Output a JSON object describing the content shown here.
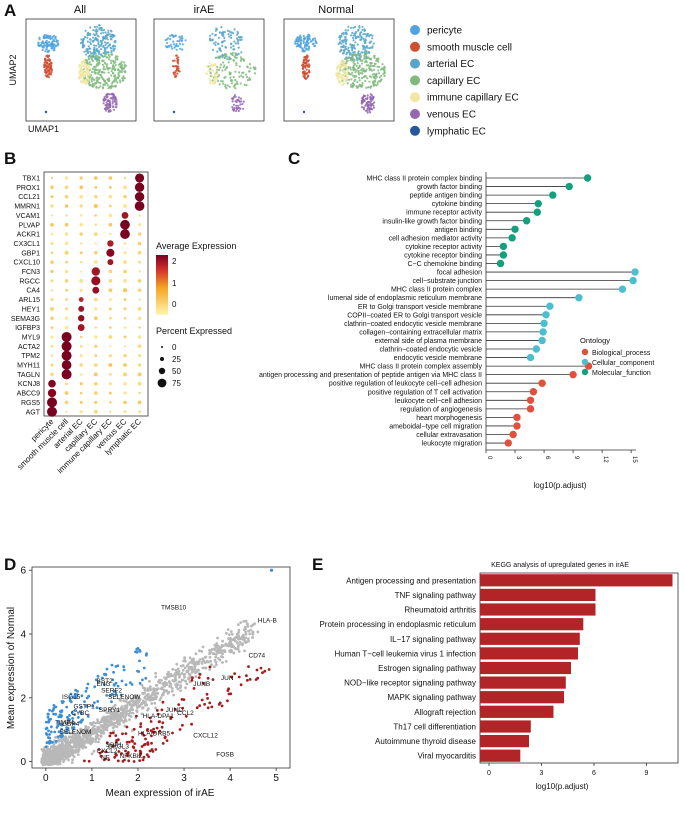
{
  "panels": {
    "A": "A",
    "B": "B",
    "C": "C",
    "D": "D",
    "E": "E"
  },
  "colors": {
    "pericyte": "#4fa3df",
    "smooth_muscle_cell": "#cf4f31",
    "arterial_EC": "#57a6c9",
    "capillary_EC": "#7fba7c",
    "immune_capillary_EC": "#f1e6a2",
    "venous_EC": "#9567b3",
    "lymphatic_EC": "#27589e",
    "dot_low": "#fff2a6",
    "dot_mid": "#f5a623",
    "dot_high": "#8b0020",
    "bio": "#e1503b",
    "cell": "#4bbfcf",
    "mol": "#13a07f",
    "up": "#a41c1c",
    "down": "#3b8fd9",
    "ns": "#b8b8b8",
    "bar": "#b32428"
  },
  "chart_data": [
    {
      "panel": "A",
      "type": "scatter",
      "umap_titles": [
        "All",
        "irAE",
        "Normal"
      ],
      "xlabel": "UMAP1",
      "ylabel": "UMAP2",
      "legend": [
        "pericyte",
        "smooth muscle cell",
        "arterial EC",
        "capillary EC",
        "immune capillary EC",
        "venous EC",
        "lymphatic EC"
      ]
    },
    {
      "panel": "B",
      "type": "scatter",
      "subtype": "dotplot",
      "genes": [
        "TBX1",
        "PROX1",
        "CCL21",
        "MMRN1",
        "VCAM1",
        "PLVAP",
        "ACKR1",
        "CX3CL1",
        "GBP1",
        "CXCL10",
        "FCN3",
        "RGCC",
        "CA4",
        "ARL15",
        "HEY1",
        "SEMA3G",
        "IGFBP3",
        "MYL9",
        "ACTA2",
        "TPM2",
        "MYH11",
        "TAGLN",
        "KCNJ8",
        "ABCC9",
        "RGS5",
        "AGT"
      ],
      "cell_types": [
        "pericyte",
        "smooth muscle cell",
        "arterial EC",
        "capillary EC",
        "immune capillary EC",
        "venous EC",
        "lymphatic EC"
      ],
      "high_expression": [
        {
          "gene": "TBX1",
          "cell": "lymphatic EC",
          "pct": 70,
          "avg": 2.2
        },
        {
          "gene": "PROX1",
          "cell": "lymphatic EC",
          "pct": 75,
          "avg": 2.2
        },
        {
          "gene": "CCL21",
          "cell": "lymphatic EC",
          "pct": 75,
          "avg": 2.2
        },
        {
          "gene": "MMRN1",
          "cell": "lymphatic EC",
          "pct": 80,
          "avg": 2.2
        },
        {
          "gene": "VCAM1",
          "cell": "venous EC",
          "pct": 40,
          "avg": 1.9
        },
        {
          "gene": "PLVAP",
          "cell": "venous EC",
          "pct": 80,
          "avg": 2.2
        },
        {
          "gene": "ACKR1",
          "cell": "venous EC",
          "pct": 80,
          "avg": 2.2
        },
        {
          "gene": "CX3CL1",
          "cell": "immune capillary EC",
          "pct": 35,
          "avg": 1.8
        },
        {
          "gene": "GBP1",
          "cell": "immune capillary EC",
          "pct": 55,
          "avg": 2.1
        },
        {
          "gene": "CXCL10",
          "cell": "immune capillary EC",
          "pct": 30,
          "avg": 1.9
        },
        {
          "gene": "FCN3",
          "cell": "capillary EC",
          "pct": 60,
          "avg": 1.9
        },
        {
          "gene": "RGCC",
          "cell": "capillary EC",
          "pct": 70,
          "avg": 2.0
        },
        {
          "gene": "CA4",
          "cell": "capillary EC",
          "pct": 40,
          "avg": 2.0
        },
        {
          "gene": "ARL15",
          "cell": "arterial EC",
          "pct": 20,
          "avg": 1.7
        },
        {
          "gene": "HEY1",
          "cell": "arterial EC",
          "pct": 30,
          "avg": 1.9
        },
        {
          "gene": "SEMA3G",
          "cell": "arterial EC",
          "pct": 35,
          "avg": 2.0
        },
        {
          "gene": "IGFBP3",
          "cell": "arterial EC",
          "pct": 40,
          "avg": 1.9
        },
        {
          "gene": "MYL9",
          "cell": "smooth muscle cell",
          "pct": 85,
          "avg": 2.2
        },
        {
          "gene": "ACTA2",
          "cell": "smooth muscle cell",
          "pct": 85,
          "avg": 2.2
        },
        {
          "gene": "TPM2",
          "cell": "smooth muscle cell",
          "pct": 85,
          "avg": 2.2
        },
        {
          "gene": "MYH11",
          "cell": "smooth muscle cell",
          "pct": 80,
          "avg": 2.2
        },
        {
          "gene": "TAGLN",
          "cell": "smooth muscle cell",
          "pct": 85,
          "avg": 2.2
        },
        {
          "gene": "KCNJ8",
          "cell": "pericyte",
          "pct": 50,
          "avg": 2.1
        },
        {
          "gene": "ABCC9",
          "cell": "pericyte",
          "pct": 60,
          "avg": 2.1
        },
        {
          "gene": "RGS5",
          "cell": "pericyte",
          "pct": 85,
          "avg": 2.2
        },
        {
          "gene": "AGT",
          "cell": "pericyte",
          "pct": 85,
          "avg": 2.2
        }
      ],
      "color_legend": {
        "title": "Average Expression",
        "ticks": [
          "2",
          "1",
          "0"
        ],
        "range": [
          -0.5,
          2.2
        ]
      },
      "size_legend": {
        "title": "Percent Expressed",
        "values": [
          "0",
          "25",
          "50",
          "75"
        ]
      }
    },
    {
      "panel": "C",
      "type": "scatter",
      "subtype": "lollipop",
      "xlabel": "log10(p.adjust)",
      "xlim": [
        0,
        15.5
      ],
      "xticks": [
        "0",
        "3",
        "6",
        "9",
        "12",
        "15"
      ],
      "legend_title": "Ontology",
      "legend": [
        "Biological_process",
        "Cellular_component",
        "Molecular_function"
      ],
      "terms": [
        {
          "label": "MHC class II protein complex binding",
          "value": 10.5,
          "ont": "mol"
        },
        {
          "label": "growth factor binding",
          "value": 8.6,
          "ont": "mol"
        },
        {
          "label": "peptide antigen binding",
          "value": 6.9,
          "ont": "mol"
        },
        {
          "label": "cytokine binding",
          "value": 5.4,
          "ont": "mol"
        },
        {
          "label": "immune receptor activity",
          "value": 5.3,
          "ont": "mol"
        },
        {
          "label": "insulin-like growth factor binding",
          "value": 4.2,
          "ont": "mol"
        },
        {
          "label": "antigen binding",
          "value": 3.0,
          "ont": "mol"
        },
        {
          "label": "cell adhesion mediator activity",
          "value": 2.7,
          "ont": "mol"
        },
        {
          "label": "cytokine receptor activity",
          "value": 1.8,
          "ont": "mol"
        },
        {
          "label": "cytokine receptor binding",
          "value": 1.8,
          "ont": "mol"
        },
        {
          "label": "C−C chemokine binding",
          "value": 1.5,
          "ont": "mol"
        },
        {
          "label": "focal adhesion",
          "value": 15.4,
          "ont": "cell"
        },
        {
          "label": "cell−substrate junction",
          "value": 15.2,
          "ont": "cell"
        },
        {
          "label": "MHC class II protein complex",
          "value": 14.1,
          "ont": "cell"
        },
        {
          "label": "lumenal side of endoplasmic reticulum membrane",
          "value": 9.6,
          "ont": "cell"
        },
        {
          "label": "ER to Golgi transport vesicle membrane",
          "value": 6.6,
          "ont": "cell"
        },
        {
          "label": "COPII−coated ER to Golgi transport vesicle",
          "value": 6.2,
          "ont": "cell"
        },
        {
          "label": "clathrin−coated endocytic vesicle membrane",
          "value": 6.0,
          "ont": "cell"
        },
        {
          "label": "collagen−containing extracellular matrix",
          "value": 5.9,
          "ont": "cell"
        },
        {
          "label": "external side of plasma membrane",
          "value": 5.8,
          "ont": "cell"
        },
        {
          "label": "clathrin−coated endocytic vesicle",
          "value": 5.2,
          "ont": "cell"
        },
        {
          "label": "endocytic vesicle membrane",
          "value": 4.6,
          "ont": "cell"
        },
        {
          "label": "MHC class II protein complex assembly",
          "value": 10.6,
          "ont": "bio"
        },
        {
          "label": "antigen processing and presentation of peptide antigen via MHC class II",
          "value": 9.0,
          "ont": "bio"
        },
        {
          "label": "positive regulation of leukocyte cell−cell adhesion",
          "value": 5.8,
          "ont": "bio"
        },
        {
          "label": "positive regulation of T cell activation",
          "value": 4.9,
          "ont": "bio"
        },
        {
          "label": "leukocyte cell−cell adhesion",
          "value": 4.6,
          "ont": "bio"
        },
        {
          "label": "regulation of angiogenesis",
          "value": 4.6,
          "ont": "bio"
        },
        {
          "label": "heart morphogenesis",
          "value": 3.2,
          "ont": "bio"
        },
        {
          "label": "ameboidal−type cell migration",
          "value": 3.2,
          "ont": "bio"
        },
        {
          "label": "cellular extravasation",
          "value": 2.8,
          "ont": "bio"
        },
        {
          "label": "leukocyte migration",
          "value": 2.3,
          "ont": "bio"
        }
      ]
    },
    {
      "panel": "D",
      "type": "scatter",
      "xlabel": "Mean expression of irAE",
      "ylabel": "Mean expression of Normal",
      "xlim": [
        -0.3,
        5.3
      ],
      "ylim": [
        -0.2,
        6.1
      ],
      "xticks": [
        "0",
        "1",
        "2",
        "3",
        "4",
        "5"
      ],
      "yticks": [
        "0",
        "2",
        "4",
        "6"
      ],
      "labeled_genes": [
        {
          "label": "TMSB10",
          "x": 2.5,
          "y": 4.7
        },
        {
          "label": "HLA-B",
          "x": 4.6,
          "y": 4.3
        },
        {
          "label": "CD74",
          "x": 4.4,
          "y": 3.2
        },
        {
          "label": "JUN",
          "x": 3.8,
          "y": 2.5
        },
        {
          "label": "JUNB",
          "x": 3.2,
          "y": 2.3
        },
        {
          "label": "BST2",
          "x": 1.1,
          "y": 2.4
        },
        {
          "label": "ENG",
          "x": 1.1,
          "y": 2.3
        },
        {
          "label": "SERF2",
          "x": 1.2,
          "y": 2.1
        },
        {
          "label": "SELENOW",
          "x": 1.35,
          "y": 1.9
        },
        {
          "label": "ISG15",
          "x": 0.35,
          "y": 1.9
        },
        {
          "label": "GSTP1",
          "x": 0.6,
          "y": 1.6
        },
        {
          "label": "SPRY1",
          "x": 1.15,
          "y": 1.5
        },
        {
          "label": "CYBC",
          "x": 0.55,
          "y": 1.4
        },
        {
          "label": "TIMP4",
          "x": 0.2,
          "y": 1.1
        },
        {
          "label": "GBP4",
          "x": 0.35,
          "y": 1.05
        },
        {
          "label": "SELENOM",
          "x": 0.3,
          "y": 0.8
        },
        {
          "label": "HLA-DPA1",
          "x": 2.1,
          "y": 1.3
        },
        {
          "label": "JUND",
          "x": 2.6,
          "y": 1.5
        },
        {
          "label": "CCL2",
          "x": 2.85,
          "y": 1.4
        },
        {
          "label": "CXCL12",
          "x": 3.2,
          "y": 0.7
        },
        {
          "label": "HLA-DRB5",
          "x": 2.0,
          "y": 0.75
        },
        {
          "label": "SBP1",
          "x": 1.3,
          "y": 0.4
        },
        {
          "label": "CXCL3",
          "x": 1.35,
          "y": 0.35
        },
        {
          "label": "CXCL2",
          "x": 1.1,
          "y": 0.2
        },
        {
          "label": "NFKBIZ",
          "x": 1.6,
          "y": 0.05
        },
        {
          "label": "FOSB",
          "x": 3.7,
          "y": 0.1
        },
        {
          "label": "NF",
          "x": 1.2,
          "y": 0.0
        }
      ]
    },
    {
      "panel": "E",
      "type": "bar",
      "title": "KEGG analysis of upregulated genes in irAE",
      "xlabel": "log10(p.adjust)",
      "xlim": [
        0,
        11
      ],
      "xticks": [
        "0",
        "3",
        "6",
        "9"
      ],
      "categories": [
        "Antigen processing and presentation",
        "TNF signaling pathway",
        "Rheumatoid arthritis",
        "Protein processing in endoplasmic reticulum",
        "IL−17 signaling pathway",
        "Human T−cell leukemia virus 1 infection",
        "Estrogen signaling pathway",
        "NOD−like receptor signaling pathway",
        "MAPK signaling pathway",
        "Allograft rejection",
        "Th17 cell differentiation",
        "Autoimmune thyroid disease",
        "Viral myocarditis"
      ],
      "values": [
        11.0,
        6.6,
        6.6,
        5.9,
        5.7,
        5.6,
        5.2,
        4.9,
        4.8,
        4.2,
        2.9,
        2.8,
        2.3
      ]
    }
  ]
}
